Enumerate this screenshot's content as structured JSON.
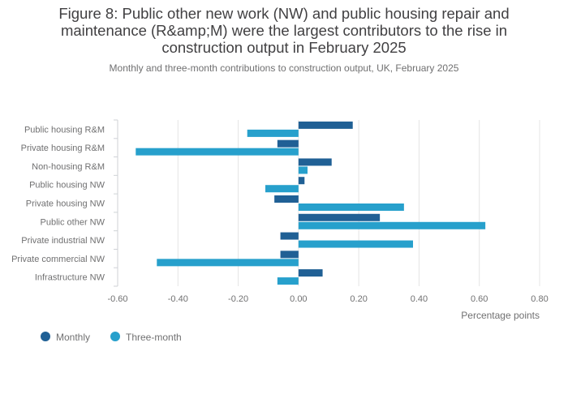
{
  "title": "Figure 8: Public other new work (NW) and public housing repair and maintenance (R&amp;M) were the largest contributors to the rise in construction output in February 2025",
  "subtitle": "Monthly and three-month contributions to construction output, UK, February 2025",
  "colors": {
    "monthly": "#206095",
    "three_month": "#27a0cc",
    "grid": "#e4e4e4",
    "axis": "#cfd2d6"
  },
  "chart_data": {
    "type": "bar",
    "orientation": "horizontal",
    "categories": [
      "Public housing R&M",
      "Private housing R&M",
      "Non-housing R&M",
      "Public housing NW",
      "Private housing NW",
      "Public other NW",
      "Private industrial NW",
      "Private commercial NW",
      "Infrastructure NW"
    ],
    "series": [
      {
        "name": "Monthly",
        "values": [
          0.18,
          -0.07,
          0.11,
          0.02,
          -0.08,
          0.27,
          -0.06,
          -0.06,
          0.08
        ]
      },
      {
        "name": "Three-month",
        "values": [
          -0.17,
          -0.54,
          0.03,
          -0.11,
          0.35,
          0.62,
          0.38,
          -0.47,
          -0.07
        ]
      }
    ],
    "xlabel": "Percentage points",
    "ylabel": "",
    "xlim": [
      -0.6,
      0.8
    ],
    "xticks": [
      "-0.60",
      "-0.40",
      "-0.20",
      "0.00",
      "0.20",
      "0.40",
      "0.60",
      "0.80"
    ],
    "grid": true,
    "legend_position": "bottom-left"
  }
}
